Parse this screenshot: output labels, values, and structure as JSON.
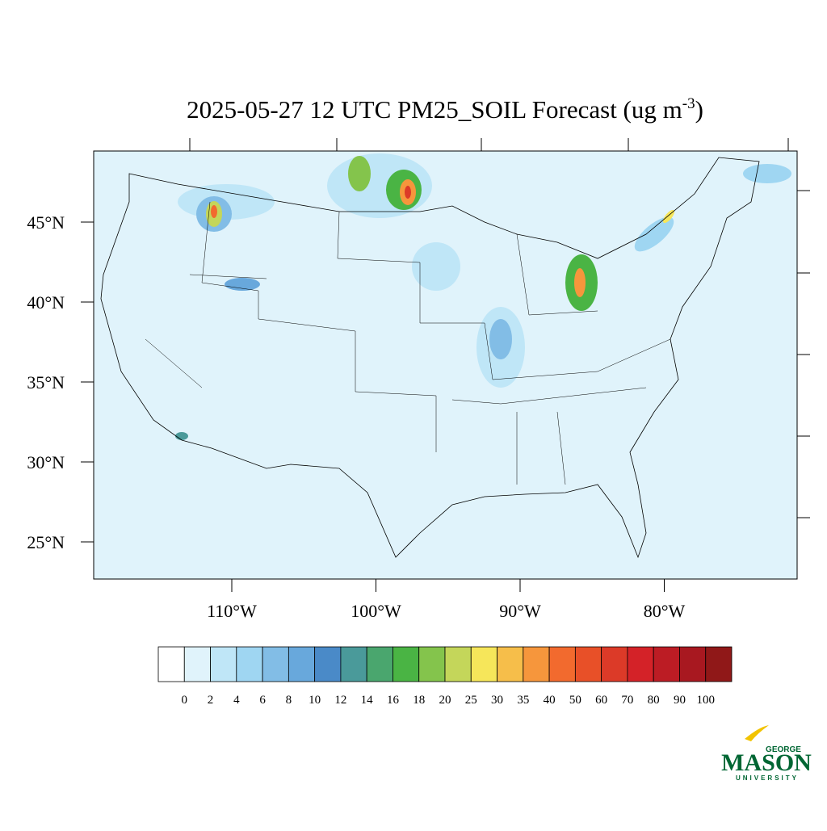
{
  "title": "2025-05-27 12 UTC PM25_SOIL Forecast (ug m",
  "title_superscript": "-3",
  "title_end": ")",
  "lat_labels": [
    "45°N",
    "40°N",
    "35°N",
    "30°N",
    "25°N"
  ],
  "lon_labels": [
    "110°W",
    "100°W",
    "90°W",
    "80°W"
  ],
  "colorbar": {
    "levels": [
      0,
      2,
      4,
      6,
      8,
      10,
      12,
      14,
      16,
      18,
      20,
      25,
      30,
      35,
      40,
      50,
      60,
      70,
      80,
      90,
      100
    ],
    "colors": [
      "#ffffff",
      "#e0f3fb",
      "#bfe6f7",
      "#9fd6f2",
      "#82bde6",
      "#68a8dc",
      "#4a8ac8",
      "#4a9a9a",
      "#4aa66e",
      "#4ab444",
      "#84c44c",
      "#c4d65a",
      "#f6e65a",
      "#f6be4a",
      "#f6963c",
      "#f26a2e",
      "#e85028",
      "#dc3a28",
      "#d42228",
      "#bc1c24",
      "#a81820",
      "#901818"
    ]
  },
  "logo": {
    "top": "GEORGE",
    "main": "MASON",
    "bottom": "UNIVERSITY"
  }
}
